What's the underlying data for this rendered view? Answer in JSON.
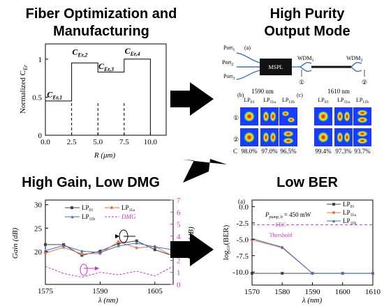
{
  "headings": {
    "fiber": [
      "Fiber Optimization and",
      "Manufacturing"
    ],
    "purity": [
      "High Purity",
      "Output Mode"
    ],
    "gain": "High Gain, Low DMG",
    "ber": "Low BER"
  },
  "fiber_plot": {
    "ylabel": "Normalized C",
    "ylabel_sub": "Er",
    "xlabel": "R (μm)",
    "yticks": [
      "0",
      "0.5",
      "1"
    ],
    "xticks": [
      "0.0",
      "2.5",
      "5.0",
      "7.5",
      "10.0"
    ],
    "labels": [
      {
        "main": "C",
        "sub": "Er,1"
      },
      {
        "main": "C",
        "sub": "Er,2"
      },
      {
        "main": "C",
        "sub": "Er,3"
      },
      {
        "main": "C",
        "sub": "Er,4"
      }
    ]
  },
  "purity_panel": {
    "ports": [
      "Port",
      "Port",
      "Port"
    ],
    "port_subs": [
      "1",
      "2",
      "3"
    ],
    "a_label": "(a)",
    "mspl": "MSPL",
    "wdm1": "WDM",
    "wdm1_sub": "1",
    "wdm2": "WDM",
    "wdm2_sub": "2",
    "circle1": "①",
    "circle2": "②",
    "b_label": "(b)",
    "c_label": "(c)",
    "lambda_b": "1590 nm",
    "lambda_c": "1610 nm",
    "modes": [
      {
        "main": "LP",
        "sub": "01"
      },
      {
        "main": "LP",
        "sub": "11a"
      },
      {
        "main": "LP",
        "sub": "11b"
      }
    ],
    "row_labels": [
      "①",
      "②"
    ],
    "c_row_label": "C",
    "purity_b": [
      "98.0%",
      "97.0%",
      "96.5%"
    ],
    "purity_c": [
      "99.4%",
      "97.3%",
      "93.7%"
    ]
  },
  "gain_chart": {
    "ylabel_left": "Gain (dB)",
    "ylabel_right": "DMG (dB)",
    "xlabel": "λ (nm)",
    "yticks_left": [
      "20",
      "25",
      "30"
    ],
    "yticks_right": [
      "0",
      "1",
      "2",
      "3",
      "4",
      "5",
      "6",
      "7"
    ],
    "xticks": [
      "1575",
      "1590",
      "1605"
    ],
    "legend": [
      {
        "main": "LP",
        "sub": "01"
      },
      {
        "main": "LP",
        "sub": "11a"
      },
      {
        "main": "LP",
        "sub": "11b"
      },
      {
        "main": "DMG",
        "sub": ""
      }
    ]
  },
  "ber_chart": {
    "panel_label": "(a)",
    "ylabel": "log₁₀(BER)",
    "xlabel": "λ (nm)",
    "pump_label": "P",
    "pump_sub": "pump, b",
    "pump_value": "= 450 mW",
    "fec_lines": [
      "FEC",
      "Threshold"
    ],
    "yticks": [
      "0.0",
      "-2.5",
      "-5.0",
      "-7.5",
      "-10.0"
    ],
    "xticks": [
      "1570",
      "1580",
      "1590",
      "1600",
      "1610"
    ],
    "legend": [
      {
        "main": "LP",
        "sub": "01"
      },
      {
        "main": "LP",
        "sub": "11a"
      },
      {
        "main": "LP",
        "sub": "11b"
      }
    ]
  },
  "colors": {
    "lp01": "#444444",
    "lp11a": "#e8734a",
    "lp11b": "#3a6ec8",
    "dmg": "#c832c8",
    "fec": "#c832c8",
    "arrow": "#000000"
  },
  "chart_data": [
    {
      "type": "line",
      "xlabel": "R (μm)",
      "ylabel": "Normalized C_Er",
      "xlim": [
        0,
        11.5
      ],
      "ylim": [
        0,
        1.2
      ],
      "x": [
        0,
        2.5,
        2.5,
        5.0,
        5.0,
        7.5,
        7.5,
        10.0,
        10.0
      ],
      "y": [
        0.45,
        0.45,
        0.95,
        0.95,
        0.83,
        0.83,
        1.0,
        1.0,
        0
      ],
      "annotations": [
        "C_Er,1",
        "C_Er,2",
        "C_Er,3",
        "C_Er,4"
      ]
    },
    {
      "type": "line",
      "xlabel": "λ (nm)",
      "ylabel": "Gain (dB)",
      "ylabel_right": "DMG (dB)",
      "xlim": [
        1575,
        1610
      ],
      "ylim": [
        13,
        31
      ],
      "ylim_right": [
        0,
        7
      ],
      "x": [
        1575,
        1580,
        1585,
        1590,
        1595,
        1600,
        1605,
        1610
      ],
      "series": [
        {
          "name": "LP01",
          "axis": "left",
          "values": [
            21.5,
            21.5,
            19.2,
            20.1,
            21.7,
            22.3,
            20.4,
            19.1
          ]
        },
        {
          "name": "LP11a",
          "axis": "left",
          "values": [
            19.7,
            20.9,
            19.5,
            19.6,
            22.1,
            20.8,
            21.1,
            19.0
          ]
        },
        {
          "name": "LP11b",
          "axis": "left",
          "values": [
            20.2,
            21.3,
            20.1,
            19.8,
            21.2,
            21.8,
            21.0,
            20.4
          ]
        },
        {
          "name": "DMG",
          "axis": "right",
          "values": [
            1.5,
            0.9,
            0.6,
            1.0,
            0.8,
            1.1,
            0.7,
            1.5
          ]
        }
      ]
    },
    {
      "type": "line",
      "xlabel": "λ (nm)",
      "ylabel": "log10(BER)",
      "xlim": [
        1570,
        1610
      ],
      "ylim": [
        -12,
        1
      ],
      "x": [
        1570,
        1580,
        1590,
        1600,
        1610
      ],
      "series": [
        {
          "name": "LP01",
          "values": [
            -10.2,
            -10.2,
            -10.2,
            -10.2,
            -10.2
          ]
        },
        {
          "name": "LP11a",
          "values": [
            -5.1,
            -6.3,
            -10.2,
            -10.2,
            -10.2
          ]
        },
        {
          "name": "LP11b",
          "values": [
            -4.9,
            -6.2,
            -10.2,
            -10.2,
            -10.2
          ]
        }
      ],
      "reference_lines": [
        {
          "name": "FEC Threshold",
          "y": -2.8
        }
      ]
    }
  ]
}
